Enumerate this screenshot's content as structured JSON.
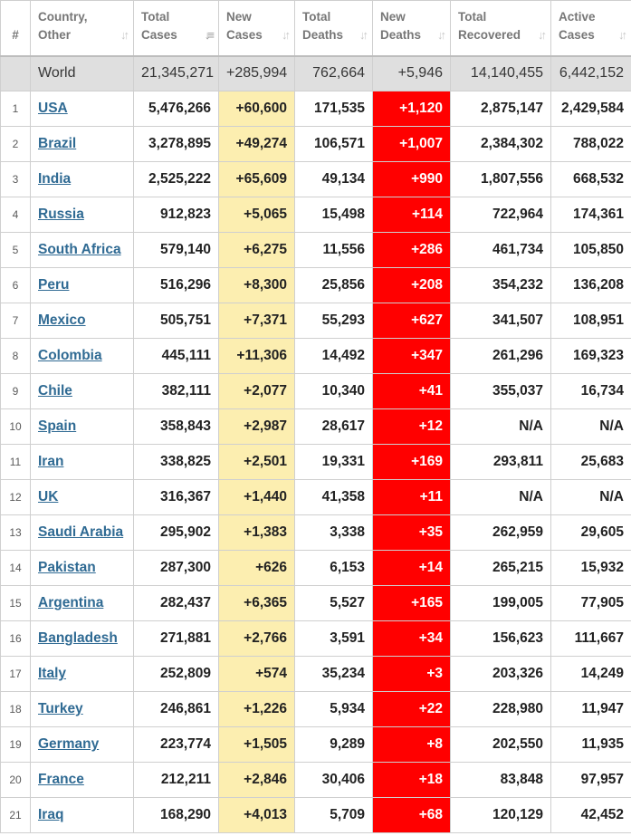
{
  "headers": [
    {
      "label": "#",
      "sortable": false
    },
    {
      "label": "Country,\nOther",
      "sortable": true,
      "active": false
    },
    {
      "label": "Total\nCases",
      "sortable": true,
      "active": true
    },
    {
      "label": "New\nCases",
      "sortable": true,
      "active": false
    },
    {
      "label": "Total\nDeaths",
      "sortable": true,
      "active": false
    },
    {
      "label": "New\nDeaths",
      "sortable": true,
      "active": false
    },
    {
      "label": "Total\nRecovered",
      "sortable": true,
      "active": false
    },
    {
      "label": "Active\nCases",
      "sortable": true,
      "active": false
    }
  ],
  "world": {
    "country": "World",
    "total_cases": "21,345,271",
    "new_cases": "+285,994",
    "total_deaths": "762,664",
    "new_deaths": "+5,946",
    "total_recovered": "14,140,455",
    "active_cases": "6,442,152"
  },
  "rows": [
    {
      "rank": "1",
      "country": "USA",
      "total_cases": "5,476,266",
      "new_cases": "+60,600",
      "total_deaths": "171,535",
      "new_deaths": "+1,120",
      "total_recovered": "2,875,147",
      "active_cases": "2,429,584"
    },
    {
      "rank": "2",
      "country": "Brazil",
      "total_cases": "3,278,895",
      "new_cases": "+49,274",
      "total_deaths": "106,571",
      "new_deaths": "+1,007",
      "total_recovered": "2,384,302",
      "active_cases": "788,022"
    },
    {
      "rank": "3",
      "country": "India",
      "total_cases": "2,525,222",
      "new_cases": "+65,609",
      "total_deaths": "49,134",
      "new_deaths": "+990",
      "total_recovered": "1,807,556",
      "active_cases": "668,532"
    },
    {
      "rank": "4",
      "country": "Russia",
      "total_cases": "912,823",
      "new_cases": "+5,065",
      "total_deaths": "15,498",
      "new_deaths": "+114",
      "total_recovered": "722,964",
      "active_cases": "174,361"
    },
    {
      "rank": "5",
      "country": "South Africa",
      "total_cases": "579,140",
      "new_cases": "+6,275",
      "total_deaths": "11,556",
      "new_deaths": "+286",
      "total_recovered": "461,734",
      "active_cases": "105,850"
    },
    {
      "rank": "6",
      "country": "Peru",
      "total_cases": "516,296",
      "new_cases": "+8,300",
      "total_deaths": "25,856",
      "new_deaths": "+208",
      "total_recovered": "354,232",
      "active_cases": "136,208"
    },
    {
      "rank": "7",
      "country": "Mexico",
      "total_cases": "505,751",
      "new_cases": "+7,371",
      "total_deaths": "55,293",
      "new_deaths": "+627",
      "total_recovered": "341,507",
      "active_cases": "108,951"
    },
    {
      "rank": "8",
      "country": "Colombia",
      "total_cases": "445,111",
      "new_cases": "+11,306",
      "total_deaths": "14,492",
      "new_deaths": "+347",
      "total_recovered": "261,296",
      "active_cases": "169,323"
    },
    {
      "rank": "9",
      "country": "Chile",
      "total_cases": "382,111",
      "new_cases": "+2,077",
      "total_deaths": "10,340",
      "new_deaths": "+41",
      "total_recovered": "355,037",
      "active_cases": "16,734"
    },
    {
      "rank": "10",
      "country": "Spain",
      "total_cases": "358,843",
      "new_cases": "+2,987",
      "total_deaths": "28,617",
      "new_deaths": "+12",
      "total_recovered": "N/A",
      "active_cases": "N/A"
    },
    {
      "rank": "11",
      "country": "Iran",
      "total_cases": "338,825",
      "new_cases": "+2,501",
      "total_deaths": "19,331",
      "new_deaths": "+169",
      "total_recovered": "293,811",
      "active_cases": "25,683"
    },
    {
      "rank": "12",
      "country": "UK",
      "total_cases": "316,367",
      "new_cases": "+1,440",
      "total_deaths": "41,358",
      "new_deaths": "+11",
      "total_recovered": "N/A",
      "active_cases": "N/A"
    },
    {
      "rank": "13",
      "country": "Saudi Arabia",
      "total_cases": "295,902",
      "new_cases": "+1,383",
      "total_deaths": "3,338",
      "new_deaths": "+35",
      "total_recovered": "262,959",
      "active_cases": "29,605"
    },
    {
      "rank": "14",
      "country": "Pakistan",
      "total_cases": "287,300",
      "new_cases": "+626",
      "total_deaths": "6,153",
      "new_deaths": "+14",
      "total_recovered": "265,215",
      "active_cases": "15,932"
    },
    {
      "rank": "15",
      "country": "Argentina",
      "total_cases": "282,437",
      "new_cases": "+6,365",
      "total_deaths": "5,527",
      "new_deaths": "+165",
      "total_recovered": "199,005",
      "active_cases": "77,905"
    },
    {
      "rank": "16",
      "country": "Bangladesh",
      "total_cases": "271,881",
      "new_cases": "+2,766",
      "total_deaths": "3,591",
      "new_deaths": "+34",
      "total_recovered": "156,623",
      "active_cases": "111,667"
    },
    {
      "rank": "17",
      "country": "Italy",
      "total_cases": "252,809",
      "new_cases": "+574",
      "total_deaths": "35,234",
      "new_deaths": "+3",
      "total_recovered": "203,326",
      "active_cases": "14,249"
    },
    {
      "rank": "18",
      "country": "Turkey",
      "total_cases": "246,861",
      "new_cases": "+1,226",
      "total_deaths": "5,934",
      "new_deaths": "+22",
      "total_recovered": "228,980",
      "active_cases": "11,947"
    },
    {
      "rank": "19",
      "country": "Germany",
      "total_cases": "223,774",
      "new_cases": "+1,505",
      "total_deaths": "9,289",
      "new_deaths": "+8",
      "total_recovered": "202,550",
      "active_cases": "11,935"
    },
    {
      "rank": "20",
      "country": "France",
      "total_cases": "212,211",
      "new_cases": "+2,846",
      "total_deaths": "30,406",
      "new_deaths": "+18",
      "total_recovered": "83,848",
      "active_cases": "97,957"
    },
    {
      "rank": "21",
      "country": "Iraq",
      "total_cases": "168,290",
      "new_cases": "+4,013",
      "total_deaths": "5,709",
      "new_deaths": "+68",
      "total_recovered": "120,129",
      "active_cases": "42,452"
    }
  ],
  "colors": {
    "new_cases_bg": "#fceeb0",
    "new_deaths_bg": "#ff0000",
    "world_bg": "#dfdfdf",
    "link": "#2f6a93"
  },
  "icons": {
    "sort": "sort-arrows-icon",
    "sort_active": "sort-desc-icon"
  }
}
